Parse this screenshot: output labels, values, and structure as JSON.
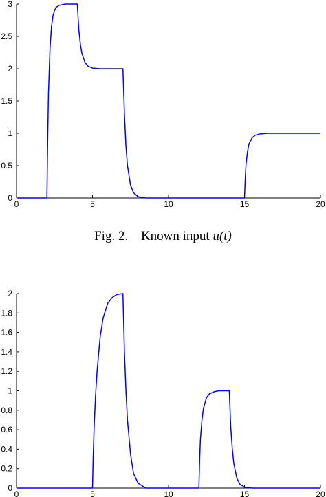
{
  "chart_data": [
    {
      "type": "line",
      "title": "",
      "xlabel": "",
      "ylabel": "",
      "xlim": [
        0,
        20
      ],
      "ylim": [
        0,
        3
      ],
      "xticks": [
        "0",
        "5",
        "10",
        "15",
        "20"
      ],
      "yticks": [
        "0",
        "0.5",
        "1",
        "1.5",
        "2",
        "2.5",
        "3"
      ],
      "grid": false,
      "series": [
        {
          "color": "#0000ff",
          "x": [
            0,
            2,
            2.05,
            2.1,
            2.2,
            2.3,
            2.4,
            2.5,
            2.6,
            2.8,
            3.0,
            3.2,
            3.5,
            4.0,
            4.05,
            4.1,
            4.2,
            4.3,
            4.5,
            4.7,
            5.0,
            5.5,
            6.0,
            7.0,
            7.05,
            7.1,
            7.2,
            7.3,
            7.5,
            7.7,
            8.0,
            8.5,
            9.0,
            15.0,
            15.05,
            15.1,
            15.2,
            15.3,
            15.5,
            15.7,
            16.0,
            16.5,
            17.0,
            20.0
          ],
          "y": [
            0,
            0,
            0.9,
            1.6,
            2.3,
            2.65,
            2.82,
            2.9,
            2.95,
            2.98,
            2.99,
            3.0,
            3.0,
            3.0,
            2.8,
            2.6,
            2.38,
            2.24,
            2.1,
            2.04,
            2.01,
            2.0,
            2.0,
            2.0,
            1.65,
            1.3,
            0.8,
            0.5,
            0.2,
            0.08,
            0.02,
            0.0,
            0.0,
            0.0,
            0.3,
            0.52,
            0.72,
            0.84,
            0.93,
            0.97,
            0.99,
            1.0,
            1.0,
            1.0
          ]
        }
      ]
    },
    {
      "type": "line",
      "title": "",
      "xlabel": "",
      "ylabel": "",
      "xlim": [
        0,
        20
      ],
      "ylim": [
        0,
        2
      ],
      "xticks": [
        "0",
        "5",
        "10",
        "15",
        "20"
      ],
      "yticks": [
        "0",
        "0.2",
        "0.4",
        "0.6",
        "0.8",
        "1",
        "1.2",
        "1.4",
        "1.6",
        "1.8",
        "2"
      ],
      "grid": false,
      "series": [
        {
          "color": "#0000ff",
          "x": [
            0,
            5,
            5.05,
            5.1,
            5.2,
            5.3,
            5.5,
            5.7,
            6.0,
            6.3,
            6.6,
            7.0,
            7.05,
            7.1,
            7.2,
            7.3,
            7.5,
            7.7,
            8.0,
            8.5,
            9.0,
            12.0,
            12.05,
            12.1,
            12.2,
            12.3,
            12.5,
            12.7,
            13.0,
            13.3,
            14.0,
            14.05,
            14.1,
            14.2,
            14.3,
            14.5,
            14.7,
            15.0,
            15.5,
            20.0
          ],
          "y": [
            0,
            0,
            0.35,
            0.6,
            0.95,
            1.2,
            1.55,
            1.75,
            1.9,
            1.96,
            1.99,
            2.0,
            1.7,
            1.4,
            1.0,
            0.7,
            0.35,
            0.15,
            0.05,
            0.0,
            0.0,
            0.0,
            0.3,
            0.5,
            0.7,
            0.82,
            0.93,
            0.97,
            0.99,
            1.0,
            1.0,
            0.8,
            0.62,
            0.4,
            0.25,
            0.1,
            0.04,
            0.01,
            0.0,
            0.0
          ]
        }
      ]
    }
  ],
  "captions": {
    "fig2_label": "Fig. 2.",
    "fig2_text_prefix": "Known input ",
    "fig2_math": "u(t)"
  }
}
